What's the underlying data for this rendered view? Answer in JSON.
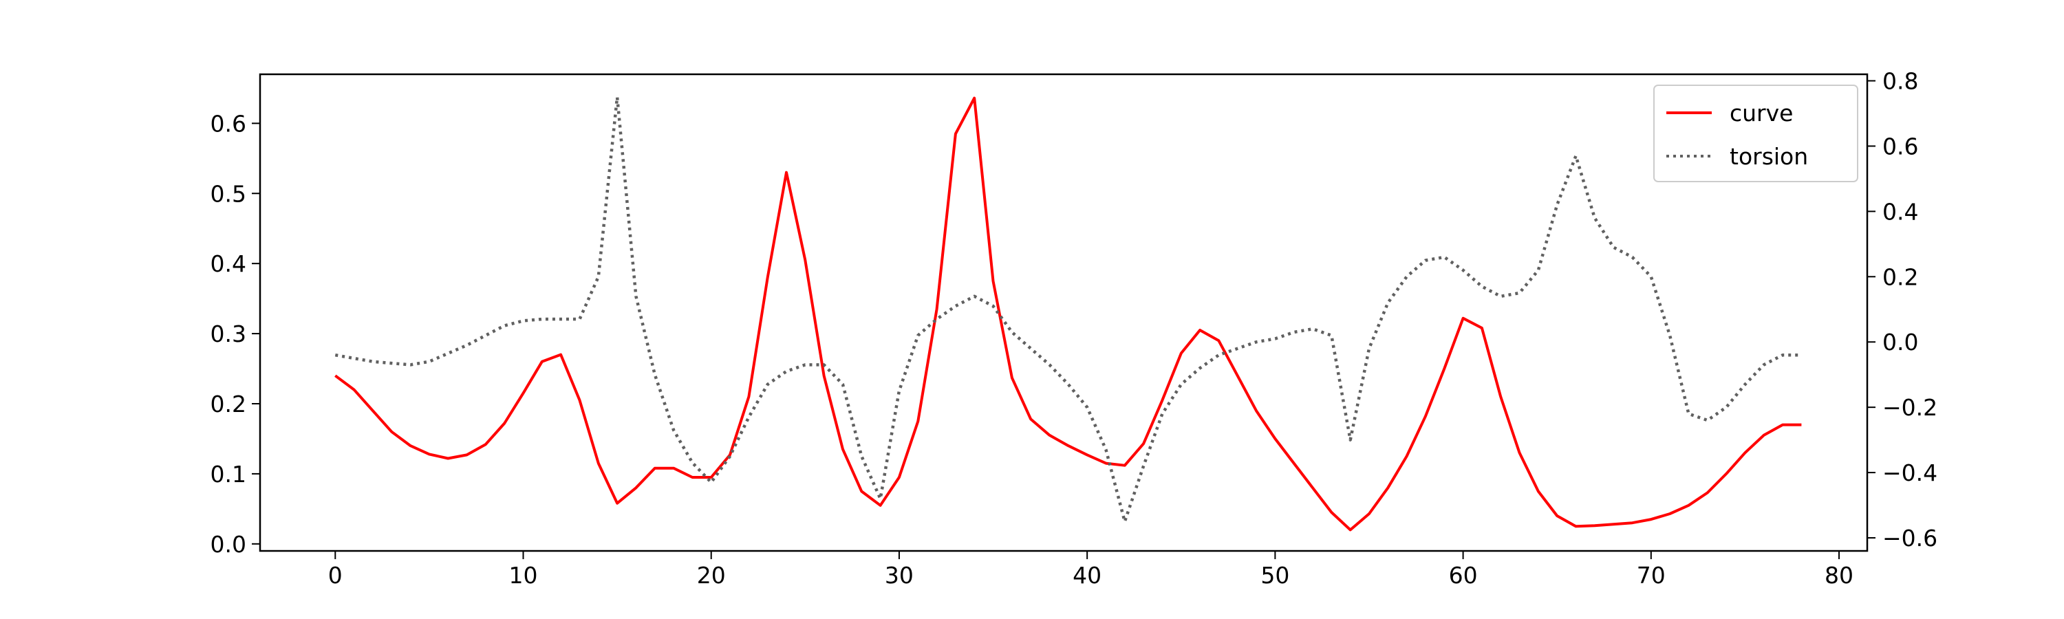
{
  "chart_data": {
    "type": "line",
    "title": "",
    "xlabel": "",
    "ylabel": "",
    "y2label": "",
    "xlim": [
      -4,
      81.5
    ],
    "ylim": [
      -0.01,
      0.67
    ],
    "y2lim": [
      -0.64,
      0.82
    ],
    "x_ticks": [
      0,
      10,
      20,
      30,
      40,
      50,
      60,
      70,
      80
    ],
    "x_tick_labels": [
      "0",
      "10",
      "20",
      "30",
      "40",
      "50",
      "60",
      "70",
      "80"
    ],
    "y_ticks": [
      0.0,
      0.1,
      0.2,
      0.3,
      0.4,
      0.5,
      0.6
    ],
    "y_tick_labels": [
      "0.0",
      "0.1",
      "0.2",
      "0.3",
      "0.4",
      "0.5",
      "0.6"
    ],
    "y2_ticks": [
      0.8,
      0.6,
      0.4,
      0.2,
      0.0,
      -0.2,
      -0.4,
      -0.6
    ],
    "y2_tick_labels": [
      "0.8",
      "0.6",
      "0.4",
      "0.2",
      "0.0",
      "−0.2",
      "−0.4",
      "−0.6"
    ],
    "grid": false,
    "legend_position": "top-right",
    "x": [
      0,
      1,
      2,
      3,
      4,
      5,
      6,
      7,
      8,
      9,
      10,
      11,
      12,
      13,
      14,
      15,
      16,
      17,
      18,
      19,
      20,
      21,
      22,
      23,
      24,
      25,
      26,
      27,
      28,
      29,
      30,
      31,
      32,
      33,
      34,
      35,
      36,
      37,
      38,
      39,
      40,
      41,
      42,
      43,
      44,
      45,
      46,
      47,
      48,
      49,
      50,
      51,
      52,
      53,
      54,
      55,
      56,
      57,
      58,
      59,
      60,
      61,
      62,
      63,
      64,
      65,
      66,
      67,
      68,
      69,
      70,
      71,
      72,
      73,
      74,
      75,
      76,
      77,
      78
    ],
    "series": [
      {
        "name": "curve",
        "axis": "left",
        "color": "#ff0000",
        "style": "solid",
        "values": [
          0.24,
          0.22,
          0.19,
          0.16,
          0.14,
          0.128,
          0.122,
          0.127,
          0.142,
          0.172,
          0.215,
          0.26,
          0.27,
          0.205,
          0.115,
          0.058,
          0.08,
          0.108,
          0.108,
          0.095,
          0.095,
          0.127,
          0.21,
          0.38,
          0.53,
          0.405,
          0.24,
          0.135,
          0.075,
          0.055,
          0.095,
          0.175,
          0.335,
          0.585,
          0.636,
          0.375,
          0.237,
          0.178,
          0.155,
          0.14,
          0.127,
          0.115,
          0.112,
          0.143,
          0.205,
          0.272,
          0.305,
          0.29,
          0.24,
          0.19,
          0.15,
          0.115,
          0.08,
          0.045,
          0.02,
          0.043,
          0.08,
          0.125,
          0.182,
          0.25,
          0.322,
          0.308,
          0.21,
          0.13,
          0.075,
          0.04,
          0.025,
          0.026,
          0.028,
          0.03,
          0.035,
          0.043,
          0.055,
          0.073,
          0.1,
          0.13,
          0.155,
          0.17,
          0.17
        ]
      },
      {
        "name": "torsion",
        "axis": "right",
        "color": "#606060",
        "style": "dotted",
        "values": [
          -0.04,
          -0.05,
          -0.06,
          -0.065,
          -0.07,
          -0.06,
          -0.035,
          -0.01,
          0.02,
          0.05,
          0.065,
          0.07,
          0.07,
          0.07,
          0.2,
          0.75,
          0.14,
          -0.1,
          -0.27,
          -0.37,
          -0.43,
          -0.35,
          -0.23,
          -0.13,
          -0.09,
          -0.07,
          -0.07,
          -0.13,
          -0.35,
          -0.48,
          -0.15,
          0.02,
          0.07,
          0.11,
          0.14,
          0.11,
          0.03,
          -0.02,
          -0.07,
          -0.13,
          -0.2,
          -0.33,
          -0.55,
          -0.38,
          -0.22,
          -0.13,
          -0.08,
          -0.04,
          -0.02,
          0.0,
          0.01,
          0.03,
          0.04,
          0.02,
          -0.3,
          -0.02,
          0.12,
          0.2,
          0.25,
          0.26,
          0.22,
          0.17,
          0.14,
          0.15,
          0.22,
          0.42,
          0.57,
          0.38,
          0.29,
          0.26,
          0.2,
          0.02,
          -0.22,
          -0.24,
          -0.2,
          -0.13,
          -0.07,
          -0.04,
          -0.04
        ]
      }
    ]
  }
}
